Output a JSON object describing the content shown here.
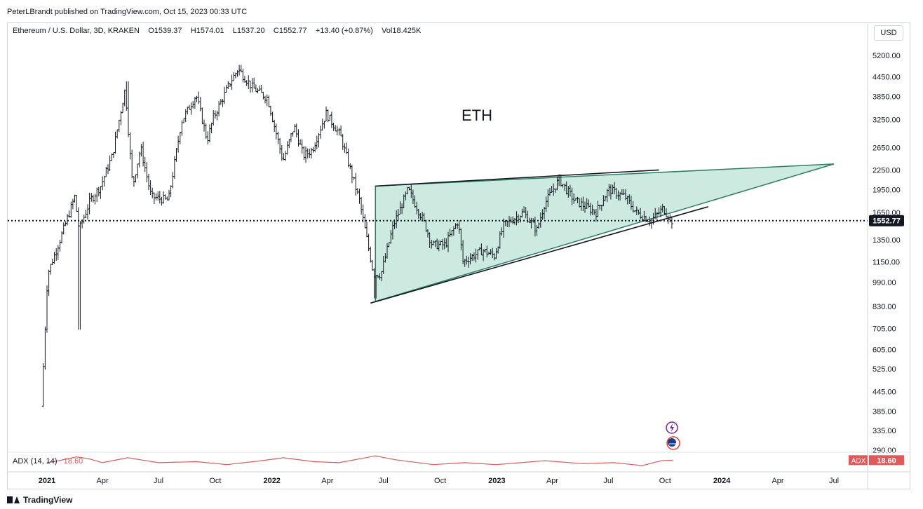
{
  "publish_line": "PeterLBrandt published on TradingView.com, Oct 15, 2023 00:33 UTC",
  "symbol": {
    "name": "Ethereum / U.S. Dollar, 3D, KRAKEN",
    "open": "O1539.37",
    "high": "H1574.01",
    "low": "L1537.20",
    "close": "C1552.77",
    "change": "+13.40 (+0.87%)",
    "volume": "Vol18.425K"
  },
  "currency_button": "USD",
  "annotation_text": "ETH",
  "last_price_label": "1552.77",
  "adx": {
    "label": "ADX (14, 14)",
    "value": "18.60",
    "badge_name": "ADX",
    "color": "#e05a5a"
  },
  "brand": "TradingView",
  "colors": {
    "candles": "#131722",
    "wedge_fill": "#b2dfd0",
    "wedge_line": "#2e7d62",
    "trend_line": "#131722",
    "grid": "#ffffff"
  },
  "icons": [
    "lightning-icon",
    "us-flag-icon"
  ],
  "chart_data": {
    "type": "candlestick",
    "title": "",
    "y_scale": "log",
    "ylim": [
      275,
      6200
    ],
    "y_ticks": [
      5200,
      4450,
      3850,
      3250,
      2650,
      2250,
      1950,
      1650,
      1350,
      1150,
      990,
      830,
      705,
      605,
      525,
      445,
      385,
      335,
      290
    ],
    "y_tick_labels": [
      "5200.00",
      "4450.00",
      "3850.00",
      "3250.00",
      "2650.00",
      "2250.00",
      "1950.00",
      "1650.00",
      "1350.00",
      "1150.00",
      "990.00",
      "830.00",
      "705.00",
      "605.00",
      "525.00",
      "445.00",
      "385.00",
      "335.00",
      "290.00"
    ],
    "x_tick_labels": [
      "2021",
      "Apr",
      "Jul",
      "Oct",
      "2022",
      "Apr",
      "Jul",
      "Oct",
      "2023",
      "Apr",
      "Jul",
      "Oct",
      "2024",
      "Apr",
      "Jul"
    ],
    "x_tick_dates": [
      "2021-01-01",
      "2021-04-01",
      "2021-07-01",
      "2021-10-01",
      "2022-01-01",
      "2022-04-01",
      "2022-07-01",
      "2022-10-01",
      "2023-01-01",
      "2023-04-01",
      "2023-07-01",
      "2023-10-01",
      "2024-01-01",
      "2024-04-01",
      "2024-07-01"
    ],
    "bold_x_ticks": [
      "2021",
      "2022",
      "2023",
      "2024"
    ],
    "last_price": 1552.77,
    "price_path": [
      [
        "2020-12-26",
        400
      ],
      [
        "2021-01-05",
        1050
      ],
      [
        "2021-01-25",
        1350
      ],
      [
        "2021-02-18",
        1850
      ],
      [
        "2021-02-25",
        1450
      ],
      [
        "2021-03-15",
        1800
      ],
      [
        "2021-04-01",
        2000
      ],
      [
        "2021-04-20",
        2500
      ],
      [
        "2021-05-11",
        4100
      ],
      [
        "2021-05-19",
        2500
      ],
      [
        "2021-05-23",
        2000
      ],
      [
        "2021-06-05",
        2650
      ],
      [
        "2021-06-22",
        1850
      ],
      [
        "2021-07-20",
        1800
      ],
      [
        "2021-08-10",
        3200
      ],
      [
        "2021-09-03",
        3900
      ],
      [
        "2021-09-21",
        2800
      ],
      [
        "2021-10-01",
        3300
      ],
      [
        "2021-10-29",
        4300
      ],
      [
        "2021-11-10",
        4700
      ],
      [
        "2021-12-04",
        4100
      ],
      [
        "2021-12-28",
        3800
      ],
      [
        "2022-01-22",
        2400
      ],
      [
        "2022-02-09",
        3100
      ],
      [
        "2022-02-24",
        2500
      ],
      [
        "2022-03-10",
        2600
      ],
      [
        "2022-04-02",
        3400
      ],
      [
        "2022-04-25",
        2900
      ],
      [
        "2022-05-10",
        2300
      ],
      [
        "2022-05-26",
        1800
      ],
      [
        "2022-06-18",
        1050
      ],
      [
        "2022-06-30",
        1050
      ],
      [
        "2022-07-20",
        1500
      ],
      [
        "2022-08-13",
        1950
      ],
      [
        "2022-09-07",
        1550
      ],
      [
        "2022-09-21",
        1300
      ],
      [
        "2022-10-12",
        1300
      ],
      [
        "2022-11-02",
        1550
      ],
      [
        "2022-11-10",
        1150
      ],
      [
        "2022-12-12",
        1250
      ],
      [
        "2022-12-31",
        1200
      ],
      [
        "2023-01-15",
        1500
      ],
      [
        "2023-02-16",
        1650
      ],
      [
        "2023-03-10",
        1450
      ],
      [
        "2023-03-22",
        1750
      ],
      [
        "2023-04-15",
        2100
      ],
      [
        "2023-05-10",
        1800
      ],
      [
        "2023-06-14",
        1650
      ],
      [
        "2023-07-04",
        1950
      ],
      [
        "2023-07-31",
        1850
      ],
      [
        "2023-08-18",
        1650
      ],
      [
        "2023-09-11",
        1550
      ],
      [
        "2023-10-01",
        1700
      ],
      [
        "2023-10-14",
        1552.77
      ]
    ],
    "price_extremes": [
      [
        "2021-02-23",
        700
      ],
      [
        "2021-05-12",
        4300
      ],
      [
        "2021-11-10",
        4850
      ],
      [
        "2022-06-18",
        880
      ]
    ],
    "wedge": {
      "upper_line": [
        [
          "2022-06-18",
          2000
        ],
        [
          "2024-07-01",
          2350
        ]
      ],
      "lower_line": [
        [
          "2022-06-18",
          860
        ],
        [
          "2024-07-01",
          2350
        ]
      ],
      "fill_color": "#b2dfd0"
    },
    "trend_lines": [
      {
        "from": [
          "2022-06-18",
          2000
        ],
        "to": [
          "2023-09-21",
          2250
        ]
      },
      {
        "from": [
          "2022-06-10",
          850
        ],
        "to": [
          "2023-12-10",
          1720
        ]
      }
    ],
    "adx_series": {
      "name": "ADX (14, 14)",
      "values": [
        [
          "2021-01-01",
          16
        ],
        [
          "2021-01-20",
          18
        ],
        [
          "2021-02-18",
          22
        ],
        [
          "2021-03-10",
          20
        ],
        [
          "2021-04-01",
          16
        ],
        [
          "2021-05-12",
          21
        ],
        [
          "2021-06-01",
          19
        ],
        [
          "2021-07-01",
          16
        ],
        [
          "2021-09-01",
          17
        ],
        [
          "2021-10-20",
          14
        ],
        [
          "2021-12-15",
          18
        ],
        [
          "2022-01-20",
          21
        ],
        [
          "2022-03-10",
          17
        ],
        [
          "2022-04-20",
          16
        ],
        [
          "2022-06-18",
          23
        ],
        [
          "2022-07-20",
          19
        ],
        [
          "2022-09-20",
          14
        ],
        [
          "2022-11-10",
          16
        ],
        [
          "2022-12-31",
          14
        ],
        [
          "2023-03-20",
          18
        ],
        [
          "2023-05-20",
          15
        ],
        [
          "2023-07-10",
          16
        ],
        [
          "2023-08-25",
          13
        ],
        [
          "2023-09-25",
          18
        ],
        [
          "2023-10-14",
          18.6
        ]
      ]
    }
  }
}
